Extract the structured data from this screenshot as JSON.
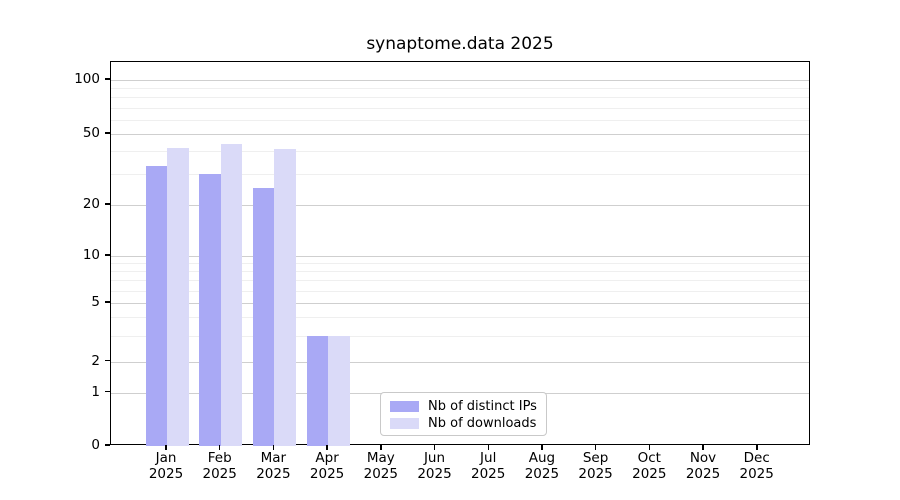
{
  "chart_data": {
    "type": "bar",
    "title": "synaptome.data 2025",
    "categories": [
      "Jan",
      "Feb",
      "Mar",
      "Apr",
      "May",
      "Jun",
      "Jul",
      "Aug",
      "Sep",
      "Oct",
      "Nov",
      "Dec"
    ],
    "year_label": "2025",
    "series": [
      {
        "name": "Nb of distinct IPs",
        "color": "#a9a9f5",
        "values": [
          33,
          30,
          25,
          3,
          0,
          0,
          0,
          0,
          0,
          0,
          0,
          0
        ]
      },
      {
        "name": "Nb of downloads",
        "color": "#dadaf8",
        "values": [
          42,
          44,
          41,
          3,
          0,
          0,
          0,
          0,
          0,
          0,
          0,
          0
        ]
      }
    ],
    "xlabel": "",
    "ylabel": "",
    "y_axis": {
      "scale": "symlog",
      "ticks": [
        0,
        1,
        2,
        5,
        10,
        20,
        50,
        100
      ],
      "minor_ticks": [
        3,
        4,
        6,
        7,
        8,
        9,
        30,
        40,
        60,
        70,
        80,
        90
      ],
      "ylim": [
        0,
        120
      ]
    },
    "grid": true,
    "legend_position": "bottom-center",
    "colors": {
      "major_gridline": "#cfcfcf",
      "minor_gridline": "#efefef",
      "axis": "#000000",
      "background": "#ffffff"
    }
  }
}
